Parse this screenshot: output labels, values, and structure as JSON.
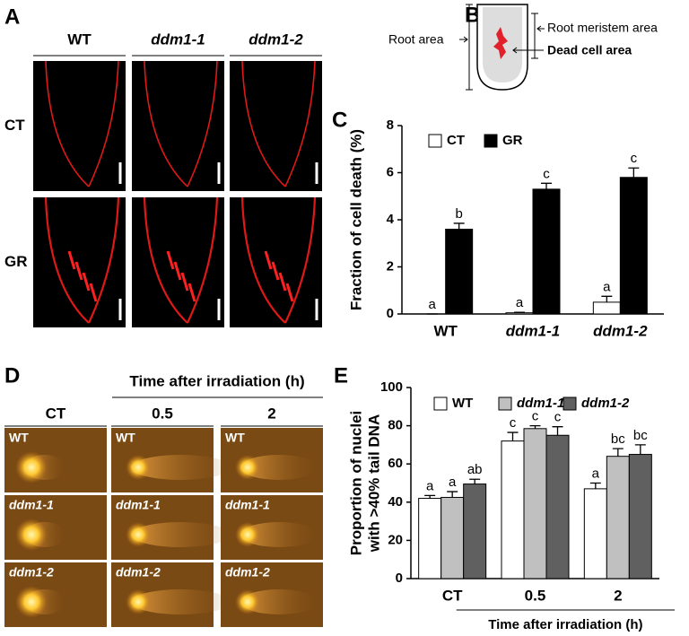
{
  "panels": {
    "a": {
      "label": "A",
      "columns": [
        "WT",
        "ddm1-1",
        "ddm1-2"
      ],
      "rows": [
        "CT",
        "GR"
      ]
    },
    "b": {
      "label": "B",
      "root_area": "Root area",
      "root_meristem_area": "Root meristem area",
      "dead_cell_area": "Dead cell area"
    },
    "c": {
      "label": "C"
    },
    "d": {
      "label": "D",
      "header": "Time after irradiation (h)",
      "columns": [
        "CT",
        "0.5",
        "2"
      ],
      "rows": [
        "WT",
        "ddm1-1",
        "ddm1-2"
      ]
    },
    "e": {
      "label": "E"
    }
  },
  "chart_data": [
    {
      "type": "bar",
      "ylabel": [
        "Fraction of cell death (%)"
      ],
      "categories": [
        "WT",
        "ddm1-1",
        "ddm1-2"
      ],
      "series": [
        {
          "name": "CT",
          "color": "#ffffff",
          "values": [
            0,
            0.05,
            0.5
          ],
          "errors": [
            0,
            0.02,
            0.25
          ],
          "letters": [
            "a",
            "a",
            "a"
          ]
        },
        {
          "name": "GR",
          "color": "#000000",
          "values": [
            3.6,
            5.3,
            5.8
          ],
          "errors": [
            0.25,
            0.25,
            0.4
          ],
          "letters": [
            "b",
            "c",
            "c"
          ]
        }
      ],
      "ylim": [
        0,
        8
      ],
      "yticks": [
        0,
        2,
        4,
        6,
        8
      ],
      "legend": "upper left"
    },
    {
      "type": "bar",
      "ylabel": [
        "Proportion of nuclei",
        "with >40% tail DNA"
      ],
      "xlabel": "Time after irradiation (h)",
      "categories": [
        "CT",
        "0.5",
        "2"
      ],
      "series": [
        {
          "name": "WT",
          "color": "#ffffff",
          "values": [
            42,
            72,
            47
          ],
          "errors": [
            1.5,
            4.5,
            3
          ],
          "letters": [
            "a",
            "c",
            "a"
          ]
        },
        {
          "name": "ddm1-1",
          "color": "#c0c0c0",
          "values": [
            42.5,
            78.5,
            64
          ],
          "errors": [
            3,
            1.5,
            4
          ],
          "letters": [
            "a",
            "c",
            "bc"
          ]
        },
        {
          "name": "ddm1-2",
          "color": "#606060",
          "values": [
            49.5,
            75,
            65
          ],
          "errors": [
            2.5,
            4.5,
            5
          ],
          "letters": [
            "ab",
            "c",
            "bc"
          ]
        }
      ],
      "ylim": [
        0,
        100
      ],
      "yticks": [
        0,
        20,
        40,
        60,
        80,
        100
      ],
      "legend": "upper left"
    }
  ]
}
